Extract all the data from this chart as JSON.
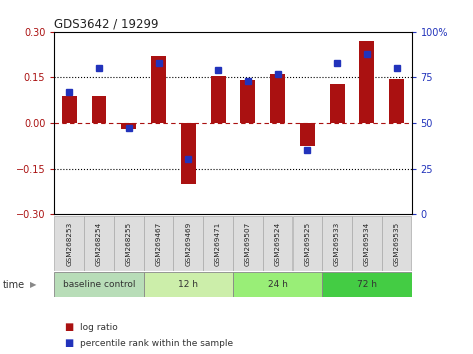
{
  "title": "GDS3642 / 19299",
  "samples": [
    "GSM268253",
    "GSM268254",
    "GSM268255",
    "GSM269467",
    "GSM269469",
    "GSM269471",
    "GSM269507",
    "GSM269524",
    "GSM269525",
    "GSM269533",
    "GSM269534",
    "GSM269535"
  ],
  "log_ratio": [
    0.09,
    0.09,
    -0.02,
    0.22,
    -0.2,
    0.155,
    0.14,
    0.16,
    -0.075,
    0.13,
    0.27,
    0.145
  ],
  "percentile_rank": [
    67,
    80,
    47,
    83,
    30,
    79,
    73,
    77,
    35,
    83,
    88,
    80
  ],
  "bar_color": "#aa1111",
  "dot_color": "#2233bb",
  "ylim_left": [
    -0.3,
    0.3
  ],
  "ylim_right": [
    0,
    100
  ],
  "yticks_left": [
    -0.3,
    -0.15,
    0.0,
    0.15,
    0.3
  ],
  "yticks_right": [
    0,
    25,
    50,
    75,
    100
  ],
  "ytick_labels_right": [
    "0",
    "25",
    "50",
    "75",
    "100%"
  ],
  "hlines_dotted": [
    0.15,
    -0.15
  ],
  "hline_zero": 0.0,
  "groups": [
    {
      "label": "baseline control",
      "start": 0,
      "end": 3,
      "color": "#b8ddb8"
    },
    {
      "label": "12 h",
      "start": 3,
      "end": 6,
      "color": "#cceeaa"
    },
    {
      "label": "24 h",
      "start": 6,
      "end": 9,
      "color": "#99ee77"
    },
    {
      "label": "72 h",
      "start": 9,
      "end": 12,
      "color": "#44cc44"
    }
  ],
  "legend_bar_label": "log ratio",
  "legend_dot_label": "percentile rank within the sample",
  "time_label": "time",
  "bg_color": "#ffffff",
  "sample_box_color": "#dddddd",
  "sample_box_edge": "#aaaaaa"
}
